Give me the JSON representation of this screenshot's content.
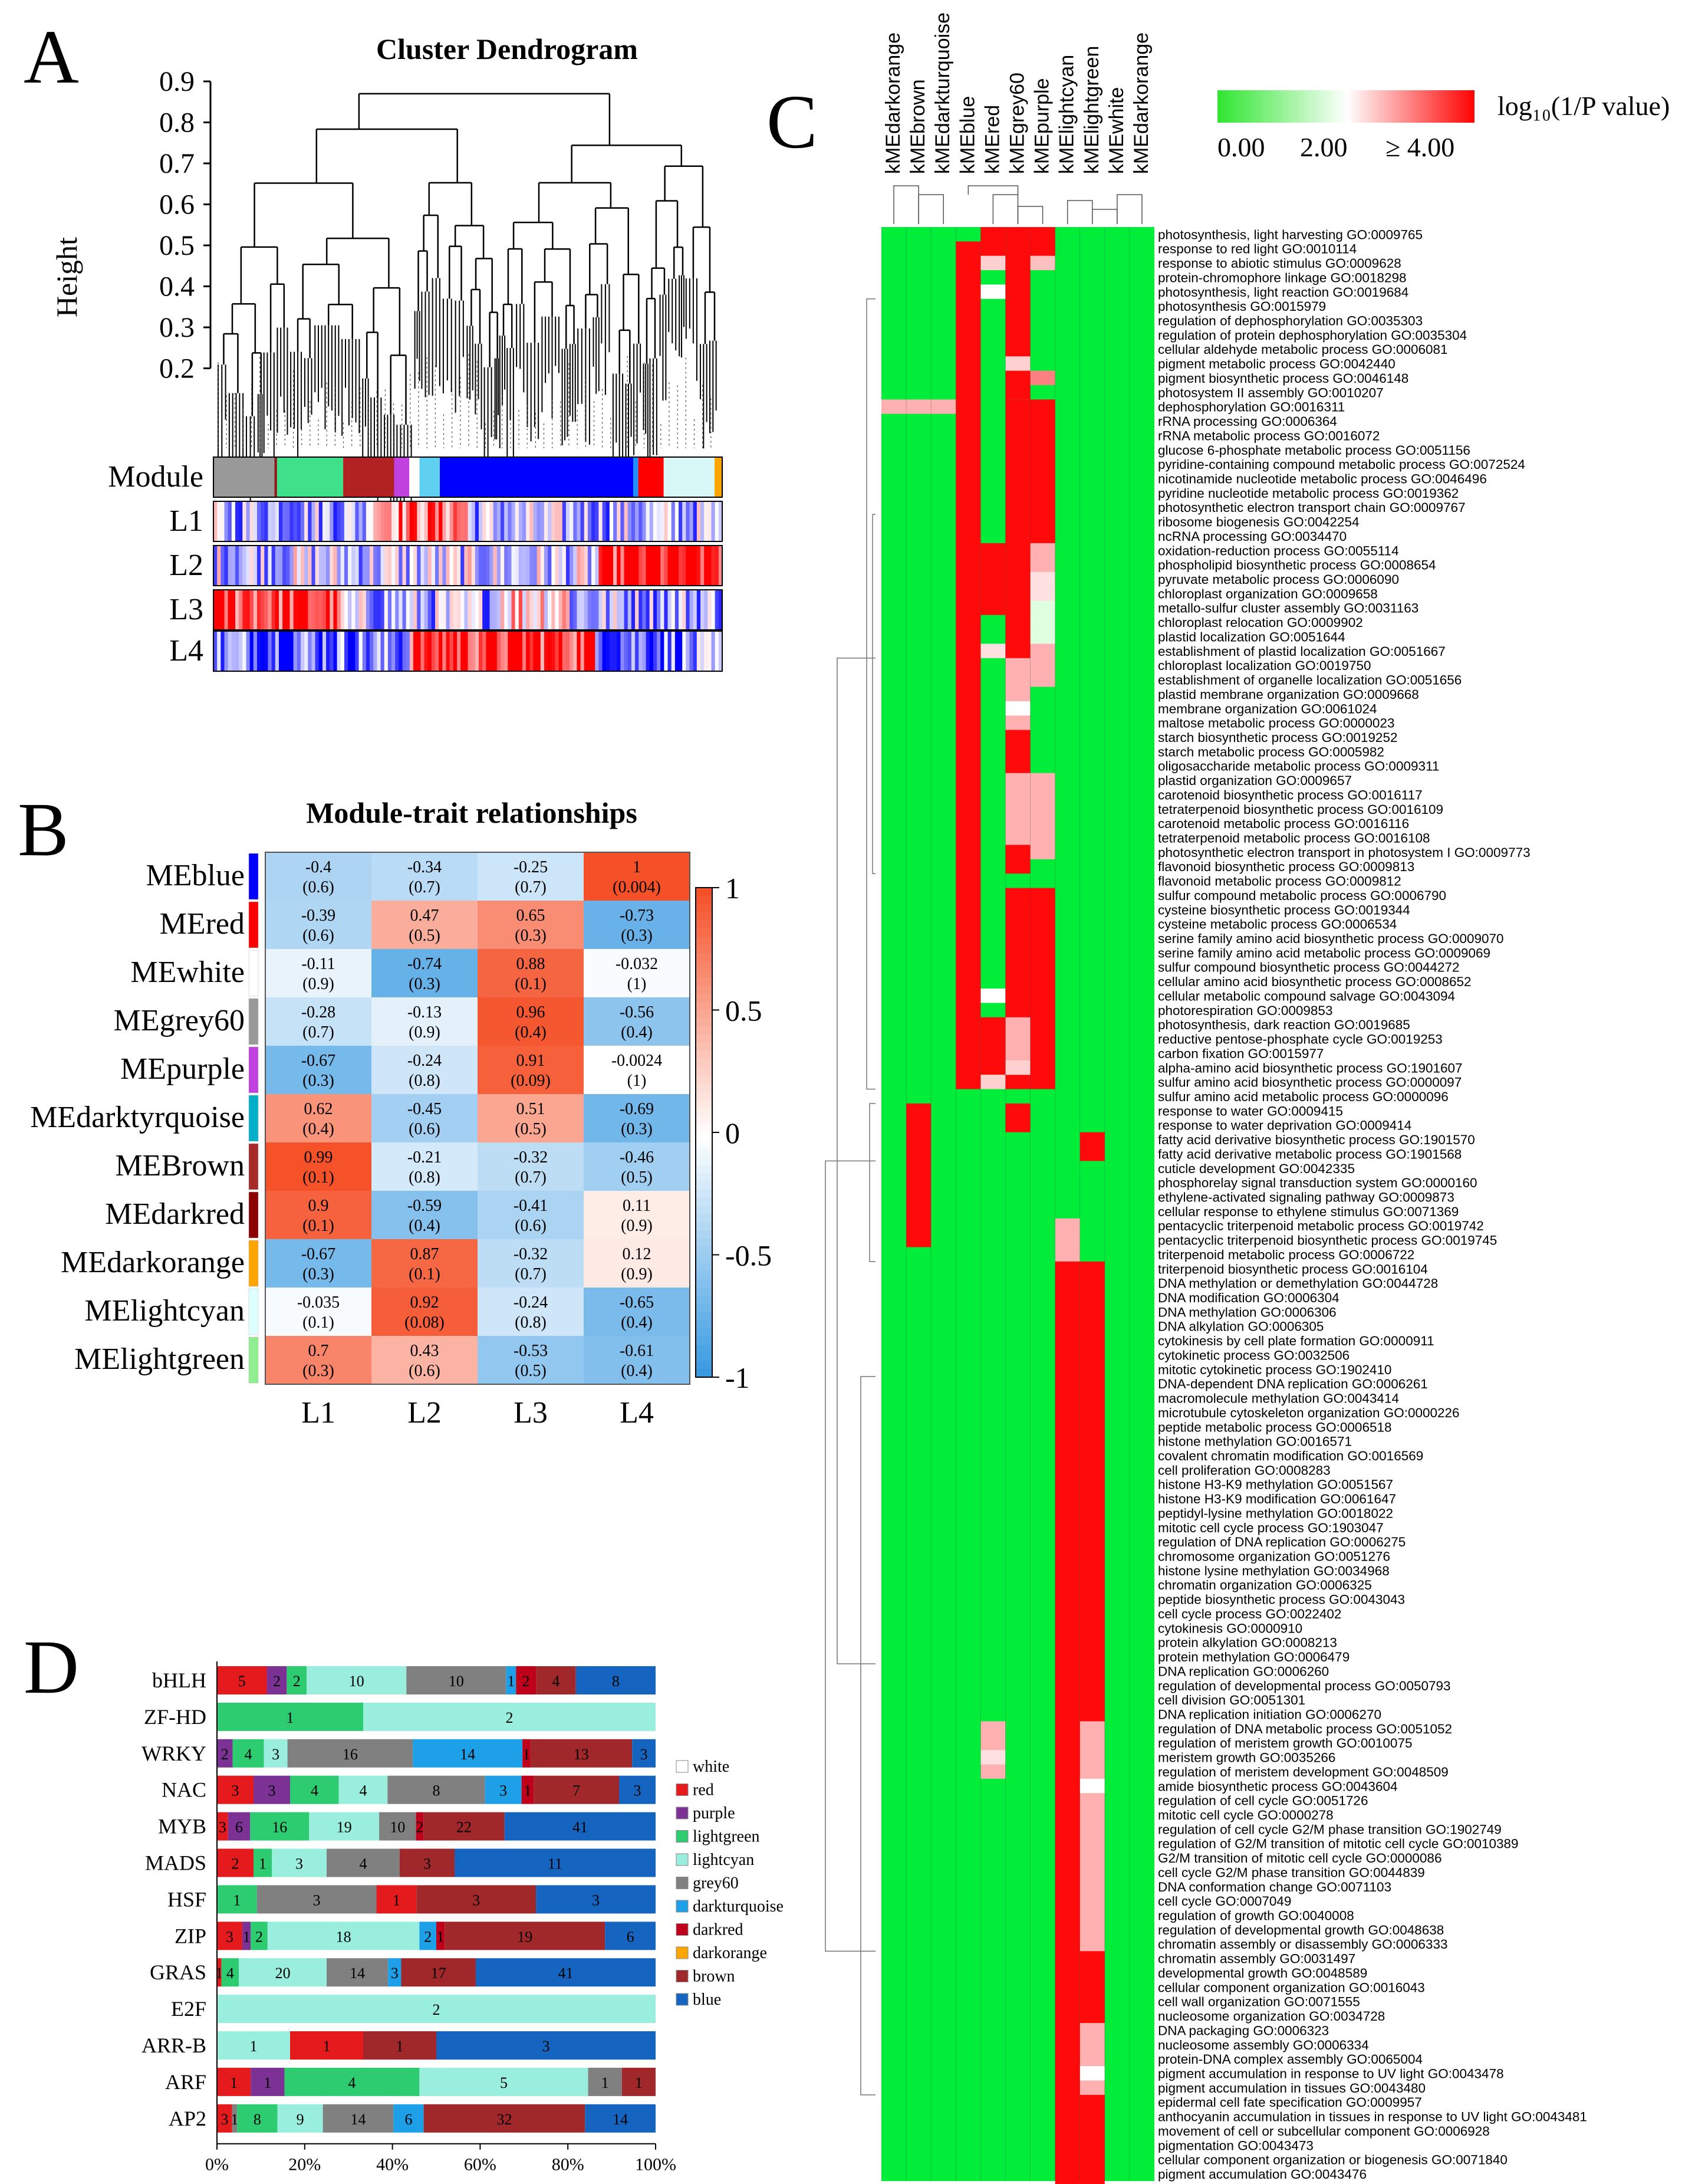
{
  "panelA": {
    "letter": "A",
    "title": "Cluster Dendrogram",
    "ylabel": "Height",
    "yticks": [
      "0.9",
      "0.8",
      "0.7",
      "0.6",
      "0.5",
      "0.4",
      "0.3",
      "0.2"
    ],
    "tracks": [
      "Module",
      "L1",
      "L2",
      "L3",
      "L4"
    ],
    "module_colors": [
      "#999999",
      "#8b1a1a",
      "#3ee08a",
      "#b22222",
      "#c040e0",
      "#ffffff",
      "#5fd0f0",
      "#0000ff",
      "#1e90ff",
      "#ff0000",
      "#d8f8f8",
      "#ffa500"
    ],
    "module_fracs": [
      0.12,
      0.005,
      0.13,
      0.1,
      0.03,
      0.02,
      0.04,
      0.38,
      0.01,
      0.05,
      0.1,
      0.015
    ]
  },
  "panelB": {
    "letter": "B",
    "title": "Module-trait relationships",
    "rows": [
      "MEblue",
      "MEred",
      "MEwhite",
      "MEgrey60",
      "MEpurple",
      "MEdarktyrquoise",
      "MEBrown",
      "MEdarkred",
      "MEdarkorange",
      "MElightcyan",
      "MElightgreen"
    ],
    "row_colors": [
      "#0000ff",
      "#ff0000",
      "#ffffff",
      "#999999",
      "#c040e0",
      "#00b0c8",
      "#a52a2a",
      "#8b0000",
      "#ffa500",
      "#e0ffff",
      "#90ee90"
    ],
    "cols": [
      "L1",
      "L2",
      "L3",
      "L4"
    ],
    "values": [
      [
        -0.4,
        -0.34,
        -0.25,
        1
      ],
      [
        -0.39,
        0.47,
        0.65,
        -0.73
      ],
      [
        -0.11,
        -0.74,
        0.88,
        -0.032
      ],
      [
        -0.28,
        -0.13,
        0.96,
        -0.56
      ],
      [
        -0.67,
        -0.24,
        0.91,
        -0.0024
      ],
      [
        0.62,
        -0.45,
        0.51,
        -0.69
      ],
      [
        0.99,
        -0.21,
        -0.32,
        -0.46
      ],
      [
        0.9,
        -0.59,
        -0.41,
        0.11
      ],
      [
        -0.67,
        0.87,
        -0.32,
        0.12
      ],
      [
        -0.035,
        0.92,
        -0.24,
        -0.65
      ],
      [
        0.7,
        0.43,
        -0.53,
        -0.61
      ]
    ],
    "pvalues": [
      [
        "(0.6)",
        "(0.7)",
        "(0.7)",
        "(0.004)"
      ],
      [
        "(0.6)",
        "(0.5)",
        "(0.3)",
        "(0.3)"
      ],
      [
        "(0.9)",
        "(0.3)",
        "(0.1)",
        "(1)"
      ],
      [
        "(0.7)",
        "(0.9)",
        "(0.4)",
        "(0.4)"
      ],
      [
        "(0.3)",
        "(0.8)",
        "(0.09)",
        "(1)"
      ],
      [
        "(0.4)",
        "(0.6)",
        "(0.5)",
        "(0.3)"
      ],
      [
        "(0.1)",
        "(0.8)",
        "(0.7)",
        "(0.5)"
      ],
      [
        "(0.1)",
        "(0.4)",
        "(0.6)",
        "(0.9)"
      ],
      [
        "(0.3)",
        "(0.1)",
        "(0.7)",
        "(0.9)"
      ],
      [
        "(0.1)",
        "(0.08)",
        "(0.8)",
        "(0.4)"
      ],
      [
        "(0.3)",
        "(0.6)",
        "(0.5)",
        "(0.4)"
      ]
    ],
    "legend_ticks": [
      "1",
      "0.5",
      "0",
      "-0.5",
      "-1"
    ]
  },
  "panelC": {
    "letter": "C",
    "columns": [
      "kMEdarkorange",
      "kMEbrown",
      "kMEdarkturquoise",
      "kMEblue",
      "kMEred",
      "kMEgrey60",
      "kMEpurple",
      "kMElightcyan",
      "kMElightgreen",
      "kMEwhite",
      "kMEdarkorange"
    ],
    "legend_title": "log₁₀(1/P value)",
    "legend_ticks": [
      "0.00",
      "2.00",
      "≥ 4.00"
    ],
    "terms": [
      "photosynthesis, light harvesting GO:0009765",
      "response to red light GO:0010114",
      "response to abiotic stimulus GO:0009628",
      "protein-chromophore linkage GO:0018298",
      "photosynthesis, light reaction GO:0019684",
      "photosynthesis GO:0015979",
      "regulation of dephosphorylation GO:0035303",
      "regulation of protein dephosphorylation GO:0035304",
      "cellular aldehyde metabolic process GO:0006081",
      "pigment metabolic process GO:0042440",
      "pigment biosynthetic process GO:0046148",
      "photosystem II assembly GO:0010207",
      "dephosphorylation GO:0016311",
      "rRNA processing GO:0006364",
      "rRNA metabolic process GO:0016072",
      "glucose 6-phosphate metabolic process GO:0051156",
      "pyridine-containing compound metabolic process GO:0072524",
      "nicotinamide nucleotide metabolic process GO:0046496",
      "pyridine nucleotide metabolic process GO:0019362",
      "photosynthetic electron transport chain GO:0009767",
      "ribosome biogenesis GO:0042254",
      "ncRNA processing GO:0034470",
      "oxidation-reduction process GO:0055114",
      "phospholipid biosynthetic process GO:0008654",
      "pyruvate metabolic process GO:0006090",
      "chloroplast organization GO:0009658",
      "metallo-sulfur cluster assembly GO:0031163",
      "chloroplast relocation GO:0009902",
      "plastid localization GO:0051644",
      "establishment of plastid localization GO:0051667",
      "chloroplast localization GO:0019750",
      "establishment of organelle localization GO:0051656",
      "plastid membrane organization GO:0009668",
      "membrane organization GO:0061024",
      "maltose metabolic process GO:0000023",
      "starch biosynthetic process GO:0019252",
      "starch metabolic process GO:0005982",
      "oligosaccharide metabolic process GO:0009311",
      "plastid organization GO:0009657",
      "carotenoid biosynthetic process GO:0016117",
      "tetraterpenoid biosynthetic process GO:0016109",
      "carotenoid metabolic process GO:0016116",
      "tetraterpenoid metabolic process GO:0016108",
      "photosynthetic electron transport in photosystem I GO:0009773",
      "flavonoid biosynthetic process GO:0009813",
      "flavonoid metabolic process GO:0009812",
      "sulfur compound metabolic process GO:0006790",
      "cysteine biosynthetic process GO:0019344",
      "cysteine metabolic process GO:0006534",
      "serine family amino acid biosynthetic process GO:0009070",
      "serine family amino acid metabolic process GO:0009069",
      "sulfur compound biosynthetic process GO:0044272",
      "cellular amino acid biosynthetic process GO:0008652",
      "cellular metabolic compound salvage GO:0043094",
      "photorespiration GO:0009853",
      "photosynthesis, dark reaction GO:0019685",
      "reductive pentose-phosphate cycle GO:0019253",
      "carbon fixation GO:0015977",
      "alpha-amino acid biosynthetic process GO:1901607",
      "sulfur amino acid biosynthetic process GO:0000097",
      "sulfur amino acid metabolic process GO:0000096",
      "response to water GO:0009415",
      "response to water deprivation GO:0009414",
      "fatty acid derivative biosynthetic process GO:1901570",
      "fatty acid derivative metabolic process GO:1901568",
      "cuticle development GO:0042335",
      "phosphorelay signal transduction system GO:0000160",
      "ethylene-activated signaling pathway GO:0009873",
      "cellular response to ethylene stimulus GO:0071369",
      "pentacyclic triterpenoid metabolic process GO:0019742",
      "pentacyclic triterpenoid biosynthetic process GO:0019745",
      "triterpenoid metabolic process GO:0006722",
      "triterpenoid biosynthetic process GO:0016104",
      "DNA methylation or demethylation GO:0044728",
      "DNA modification GO:0006304",
      "DNA methylation GO:0006306",
      "DNA alkylation GO:0006305",
      "cytokinesis by cell plate formation GO:0000911",
      "cytokinetic process GO:0032506",
      "mitotic cytokinetic process GO:1902410",
      "DNA-dependent DNA replication GO:0006261",
      "macromolecule methylation GO:0043414",
      "microtubule cytoskeleton organization GO:0000226",
      "peptide metabolic process GO:0006518",
      "histone methylation GO:0016571",
      "covalent chromatin modification GO:0016569",
      "cell proliferation GO:0008283",
      "histone H3-K9 methylation GO:0051567",
      "histone H3-K9 modification GO:0061647",
      "peptidyl-lysine methylation GO:0018022",
      "mitotic cell cycle process GO:1903047",
      "regulation of DNA replication GO:0006275",
      "chromosome organization GO:0051276",
      "histone lysine methylation GO:0034968",
      "chromatin organization GO:0006325",
      "peptide biosynthetic process GO:0043043",
      "cell cycle process GO:0022402",
      "cytokinesis GO:0000910",
      "protein alkylation GO:0008213",
      "protein methylation GO:0006479",
      "DNA replication GO:0006260",
      "regulation of developmental process GO:0050793",
      "cell division GO:0051301",
      "DNA replication initiation GO:0006270",
      "regulation of DNA metabolic process GO:0051052",
      "regulation of meristem growth GO:0010075",
      "meristem growth GO:0035266",
      "regulation of meristem development GO:0048509",
      "amide biosynthetic process GO:0043604",
      "regulation of cell cycle GO:0051726",
      "mitotic cell cycle GO:0000278",
      "regulation of cell cycle G2/M phase transition GO:1902749",
      "regulation of G2/M transition of mitotic cell cycle GO:0010389",
      "G2/M transition of mitotic cell cycle GO:0000086",
      "cell cycle G2/M phase transition GO:0044839",
      "DNA conformation change GO:0071103",
      "cell cycle GO:0007049",
      "regulation of growth GO:0040008",
      "regulation of developmental growth GO:0048638",
      "chromatin assembly or disassembly GO:0006333",
      "chromatin assembly GO:0031497",
      "developmental growth GO:0048589",
      "cellular component organization GO:0016043",
      "cell wall organization GO:0071555",
      "nucleosome organization GO:0034728",
      "DNA packaging GO:0006323",
      "nucleosome assembly GO:0006334",
      "protein-DNA complex assembly GO:0065004",
      "pigment accumulation in response to UV light GO:0043478",
      "pigment accumulation in tissues GO:0043480",
      "epidermal cell fate specification GO:0009957",
      "anthocyanin accumulation in tissues in response to UV light GO:0043481",
      "movement of cell or subcellular component GO:0006928",
      "pigmentation GO:0043473",
      "cellular component organization or biogenesis GO:0071840",
      "pigment accumulation GO:0043476"
    ]
  },
  "panelD": {
    "letter": "D",
    "families": [
      "bHLH",
      "ZF-HD",
      "WRKY",
      "NAC",
      "MYB",
      "MADS",
      "HSF",
      "ZIP",
      "GRAS",
      "E2F",
      "ARR-B",
      "ARF",
      "AP2"
    ],
    "xticks": [
      "0%",
      "20%",
      "40%",
      "60%",
      "80%",
      "100%"
    ],
    "legend": [
      "white",
      "red",
      "purple",
      "lightgreen",
      "lightcyan",
      "grey60",
      "darkturquoise",
      "darkred",
      "darkorange",
      "brown",
      "blue"
    ],
    "legend_colors": [
      "#ffffff",
      "#e41a1c",
      "#7b3294",
      "#2ecc71",
      "#99eedd",
      "#808080",
      "#1ea0e8",
      "#c0001a",
      "#ffa500",
      "#a0282a",
      "#1565c0"
    ],
    "bars": [
      [
        [
          "red",
          5
        ],
        [
          "purple",
          2
        ],
        [
          "lightgreen",
          2
        ],
        [
          "lightcyan",
          10
        ],
        [
          "grey60",
          10
        ],
        [
          "darkturquoise",
          1
        ],
        [
          "darkred",
          2
        ],
        [
          "brown",
          4
        ],
        [
          "blue",
          8
        ]
      ],
      [
        [
          "lightgreen",
          1
        ],
        [
          "lightcyan",
          2
        ]
      ],
      [
        [
          "purple",
          2
        ],
        [
          "lightgreen",
          4
        ],
        [
          "lightcyan",
          3
        ],
        [
          "grey60",
          16
        ],
        [
          "darkturquoise",
          14
        ],
        [
          "darkred",
          1
        ],
        [
          "brown",
          13
        ],
        [
          "blue",
          3
        ]
      ],
      [
        [
          "red",
          3
        ],
        [
          "purple",
          3
        ],
        [
          "lightgreen",
          4
        ],
        [
          "lightcyan",
          4
        ],
        [
          "grey60",
          8
        ],
        [
          "darkturquoise",
          3
        ],
        [
          "darkred",
          1
        ],
        [
          "brown",
          7
        ],
        [
          "blue",
          3
        ]
      ],
      [
        [
          "red",
          3
        ],
        [
          "purple",
          6
        ],
        [
          "lightgreen",
          16
        ],
        [
          "lightcyan",
          19
        ],
        [
          "grey60",
          10
        ],
        [
          "darkred",
          2
        ],
        [
          "brown",
          22
        ],
        [
          "blue",
          41
        ]
      ],
      [
        [
          "red",
          2
        ],
        [
          "lightgreen",
          1
        ],
        [
          "lightcyan",
          3
        ],
        [
          "grey60",
          4
        ],
        [
          "brown",
          3
        ],
        [
          "blue",
          11
        ]
      ],
      [
        [
          "lightgreen",
          1
        ],
        [
          "grey60",
          3
        ],
        [
          "red",
          1
        ],
        [
          "brown",
          3
        ],
        [
          "blue",
          3
        ]
      ],
      [
        [
          "red",
          3
        ],
        [
          "purple",
          1
        ],
        [
          "lightgreen",
          2
        ],
        [
          "lightcyan",
          18
        ],
        [
          "darkturquoise",
          2
        ],
        [
          "darkred",
          1
        ],
        [
          "brown",
          19
        ],
        [
          "blue",
          6
        ]
      ],
      [
        [
          "red",
          1
        ],
        [
          "lightgreen",
          4
        ],
        [
          "lightcyan",
          20
        ],
        [
          "grey60",
          14
        ],
        [
          "darkturquoise",
          3
        ],
        [
          "brown",
          17
        ],
        [
          "blue",
          41
        ]
      ],
      [
        [
          "lightcyan",
          2
        ]
      ],
      [
        [
          "lightcyan",
          1
        ],
        [
          "red",
          1
        ],
        [
          "brown",
          1
        ],
        [
          "blue",
          3
        ]
      ],
      [
        [
          "red",
          1
        ],
        [
          "purple",
          1
        ],
        [
          "lightgreen",
          4
        ],
        [
          "lightcyan",
          5
        ],
        [
          "grey60",
          1
        ],
        [
          "brown",
          1
        ]
      ],
      [
        [
          "red",
          3
        ],
        [
          "grey60",
          1
        ],
        [
          "lightgreen",
          8
        ],
        [
          "lightcyan",
          9
        ],
        [
          "grey60",
          14
        ],
        [
          "darkturquoise",
          6
        ],
        [
          "brown",
          32
        ],
        [
          "blue",
          14
        ]
      ]
    ]
  }
}
